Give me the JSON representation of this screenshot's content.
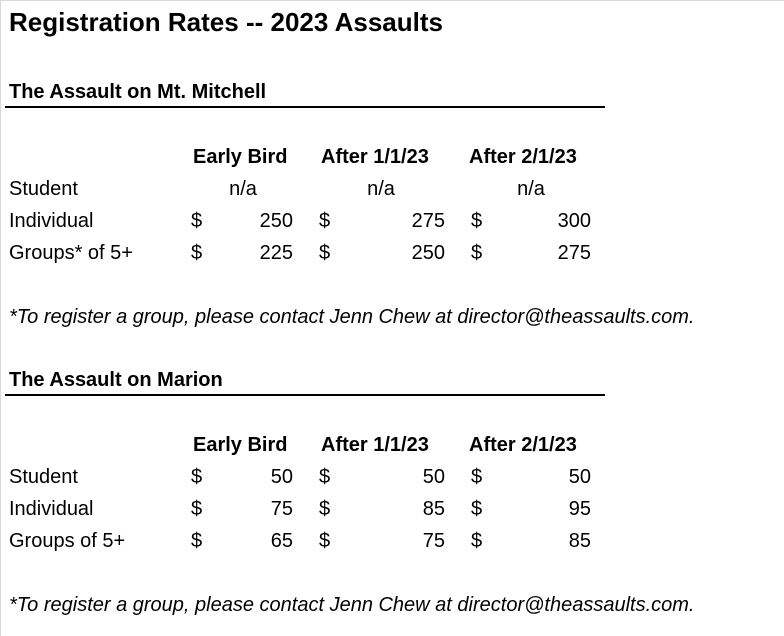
{
  "title": "Registration Rates -- 2023 Assaults",
  "columns": [
    "Early Bird",
    "After 1/1/23",
    "After 2/1/23"
  ],
  "currency_symbol": "$",
  "sections": [
    {
      "title": "The Assault on Mt. Mitchell",
      "rows": [
        {
          "label": "Student",
          "values": [
            "n/a",
            "n/a",
            "n/a"
          ]
        },
        {
          "label": "Individual",
          "values": [
            "250",
            "275",
            "300"
          ]
        },
        {
          "label": "Groups* of 5+",
          "values": [
            "225",
            "250",
            "275"
          ]
        }
      ],
      "note": "*To register a group, please contact Jenn Chew at director@theassaults.com."
    },
    {
      "title": "The Assault on Marion",
      "rows": [
        {
          "label": "Student",
          "values": [
            "50",
            "50",
            "50"
          ]
        },
        {
          "label": "Individual",
          "values": [
            "75",
            "85",
            "95"
          ]
        },
        {
          "label": "Groups of 5+",
          "values": [
            "65",
            "75",
            "85"
          ]
        }
      ],
      "note": "*To register a group, please contact Jenn Chew at director@theassaults.com."
    }
  ]
}
